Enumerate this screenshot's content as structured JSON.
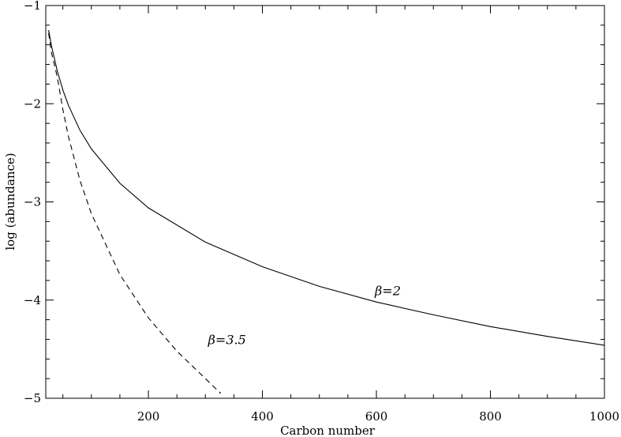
{
  "chart_data": {
    "type": "line",
    "title": "",
    "xlabel": "Carbon number",
    "ylabel": "log (abundance)",
    "xlim": [
      20,
      1000
    ],
    "ylim": [
      -5,
      -1
    ],
    "x_ticks": [
      200,
      400,
      600,
      800,
      1000
    ],
    "x_tick_labels": [
      "200",
      "400",
      "600",
      "800",
      "1000"
    ],
    "y_ticks": [
      -5,
      -4,
      -3,
      -2,
      -1
    ],
    "y_tick_labels": [
      "−5",
      "−4",
      "−3",
      "−2",
      "−1"
    ],
    "grid": false,
    "legend": "none",
    "series": [
      {
        "name": "β=2",
        "style": "solid",
        "x": [
          25,
          30,
          40,
          50,
          60,
          80,
          100,
          150,
          200,
          300,
          400,
          500,
          600,
          700,
          800,
          900,
          1000
        ],
        "y": [
          -1.25,
          -1.41,
          -1.66,
          -1.86,
          -2.02,
          -2.27,
          -2.46,
          -2.81,
          -3.06,
          -3.41,
          -3.66,
          -3.86,
          -4.02,
          -4.15,
          -4.27,
          -4.37,
          -4.46
        ]
      },
      {
        "name": "β=3.5",
        "style": "dashed",
        "x": [
          25,
          30,
          40,
          50,
          60,
          80,
          100,
          150,
          200,
          250,
          300,
          327
        ],
        "y": [
          -1.28,
          -1.48,
          -1.72,
          -2.06,
          -2.34,
          -2.78,
          -3.12,
          -3.74,
          -4.18,
          -4.52,
          -4.8,
          -4.95
        ]
      }
    ],
    "annotations": [
      {
        "text": "β=2",
        "x": 620,
        "y": -3.95
      },
      {
        "text": "β=3.5",
        "x": 338,
        "y": -4.45
      }
    ]
  }
}
